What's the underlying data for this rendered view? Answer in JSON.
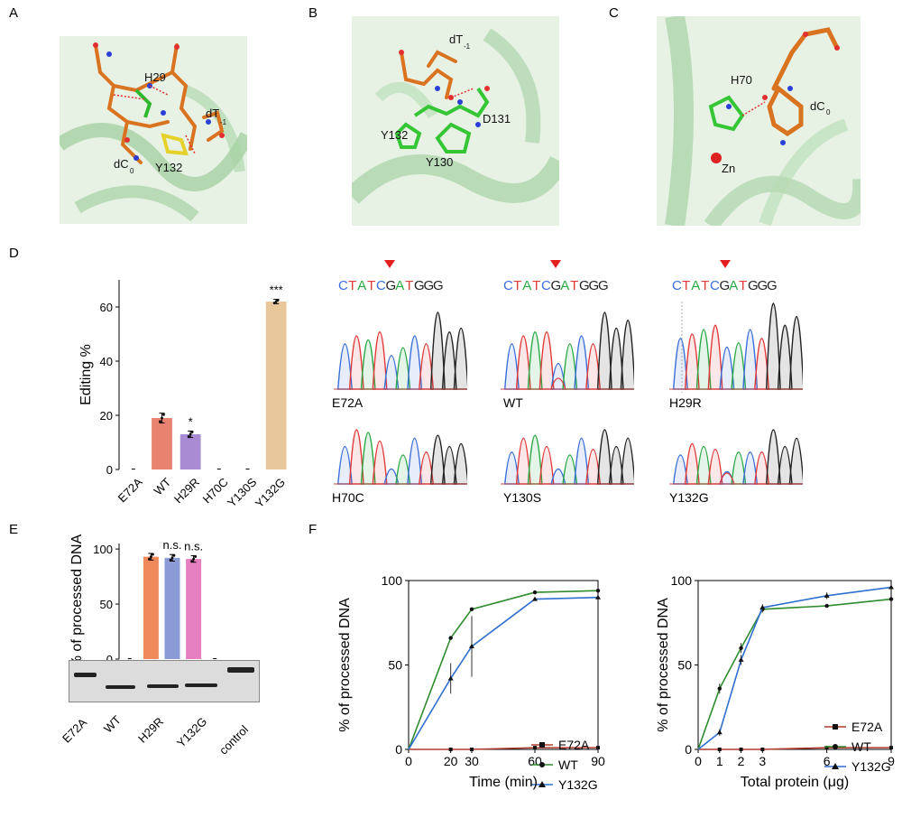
{
  "panels": {
    "A": "A",
    "B": "B",
    "C": "C",
    "D": "D",
    "E": "E",
    "F": "F"
  },
  "colors": {
    "E72A": "#c0504d",
    "WT": "#e8836f",
    "H29R": "#a98bd3",
    "Y132G": "#e8c89a",
    "WT_E": "#f08a5d",
    "H29R_E": "#8b9bd6",
    "Y132G_E": "#e67fbf",
    "line_E72A": "#b13a2e",
    "line_WT": "#2e8b2e",
    "line_Y132G": "#2f6fd0",
    "trace_A": "#3a6fd8",
    "trace_C": "#2aa845",
    "trace_G": "#222222",
    "trace_T": "#e03a3a"
  },
  "structure_A": {
    "labels": [
      "H29",
      "dT",
      "-1",
      "dC",
      "0",
      "Y132"
    ]
  },
  "structure_B": {
    "labels": [
      "dT",
      "-1",
      "Y132",
      "D131",
      "Y130"
    ]
  },
  "structure_C": {
    "labels": [
      "H70",
      "dC",
      "0",
      "Zn"
    ]
  },
  "chart_data": [
    {
      "id": "D-bar",
      "type": "bar",
      "ylabel": "Editing %",
      "categories": [
        "E72A",
        "WT",
        "H29R",
        "H70C",
        "Y130S",
        "Y132G"
      ],
      "values": [
        0,
        19,
        13,
        0,
        0,
        62
      ],
      "errors": [
        0,
        1.8,
        1.2,
        0,
        0,
        0.8
      ],
      "significance": [
        "",
        "",
        "*",
        "",
        "",
        "***"
      ],
      "yticks": [
        0,
        20,
        40,
        60
      ],
      "ylim": [
        0,
        70
      ]
    },
    {
      "id": "E-bar",
      "type": "bar",
      "ylabel": "% of processed DNA",
      "categories": [
        "E72A",
        "WT",
        "H29R",
        "Y132G",
        "control"
      ],
      "values": [
        0,
        93,
        92,
        91,
        0
      ],
      "errors": [
        0,
        3,
        3,
        3,
        0
      ],
      "significance": [
        "",
        "",
        "n.s.",
        "n.s.",
        ""
      ],
      "yticks": [
        0,
        50,
        100
      ],
      "ylim": [
        0,
        105
      ]
    },
    {
      "id": "F-time",
      "type": "line",
      "xlabel": "Time (min)",
      "ylabel": "% of processed DNA",
      "x": [
        0,
        20,
        30,
        60,
        90
      ],
      "xticks": [
        0,
        20,
        30,
        60,
        90
      ],
      "yticks": [
        0,
        50,
        100
      ],
      "xlim": [
        0,
        90
      ],
      "ylim": [
        0,
        100
      ],
      "legend": "bottom-right",
      "series": [
        {
          "name": "E72A",
          "values": [
            0,
            0,
            0,
            1,
            1
          ],
          "marker": "square"
        },
        {
          "name": "WT",
          "values": [
            0,
            66,
            83,
            93,
            94
          ],
          "marker": "circle"
        },
        {
          "name": "Y132G",
          "values": [
            0,
            42,
            61,
            89,
            90
          ],
          "marker": "triangle",
          "errors": [
            0,
            9,
            18,
            1,
            1
          ]
        }
      ]
    },
    {
      "id": "F-protein",
      "type": "line",
      "xlabel": "Total protein (μg)",
      "ylabel": "% of processed DNA",
      "x": [
        0,
        1,
        2,
        3,
        6,
        9
      ],
      "xticks": [
        0,
        1,
        2,
        3,
        6,
        9
      ],
      "yticks": [
        0,
        50,
        100
      ],
      "xlim": [
        0,
        9
      ],
      "ylim": [
        0,
        100
      ],
      "legend": "bottom-right",
      "series": [
        {
          "name": "E72A",
          "values": [
            0,
            0,
            0,
            0,
            1,
            1
          ],
          "marker": "square"
        },
        {
          "name": "WT",
          "values": [
            0,
            36,
            60,
            83,
            85,
            89
          ],
          "marker": "circle",
          "errors": [
            0,
            3,
            3,
            2,
            1,
            1
          ]
        },
        {
          "name": "Y132G",
          "values": [
            0,
            10,
            53,
            84,
            91,
            96
          ],
          "marker": "triangle",
          "errors": [
            0,
            2,
            3,
            2,
            2,
            1
          ]
        }
      ]
    }
  ],
  "sequence": [
    "C",
    "T",
    "A",
    "T",
    "C",
    "G",
    "A",
    "T",
    "G",
    "G",
    "G"
  ],
  "chromatograms": [
    {
      "label": "E72A"
    },
    {
      "label": "WT"
    },
    {
      "label": "H29R"
    },
    {
      "label": "H70C"
    },
    {
      "label": "Y130S"
    },
    {
      "label": "Y132G"
    }
  ],
  "gel_lanes": [
    "E72A",
    "WT",
    "H29R",
    "Y132G",
    "control"
  ]
}
